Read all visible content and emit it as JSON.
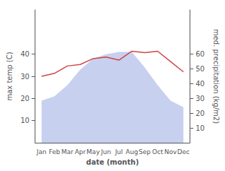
{
  "chart_data": {
    "type": "line",
    "categories": [
      "Jan",
      "Feb",
      "Mar",
      "Apr",
      "May",
      "Jun",
      "Jul",
      "Aug",
      "Sep",
      "Oct",
      "Nov",
      "Dec"
    ],
    "series": [
      {
        "type": "area",
        "color": "#c8d0f0",
        "values": [
          19,
          21,
          26,
          33,
          38,
          40,
          41,
          41,
          34,
          26,
          19,
          16
        ]
      },
      {
        "type": "line",
        "color": "#cc4444",
        "axis": "y2",
        "values": [
          45,
          47,
          52,
          53,
          57,
          58,
          56,
          62,
          61,
          62,
          55,
          48
        ]
      }
    ],
    "xlabel": "date (month)",
    "ylabel": "max temp (C)",
    "y2label": "med. precipitation (kg/m2)",
    "ylim": [
      0,
      60
    ],
    "yticks": [
      10,
      20,
      30,
      40
    ],
    "y2lim": [
      0,
      90
    ],
    "y2ticks": [
      10,
      20,
      30,
      40,
      50,
      60
    ],
    "grid": false
  }
}
